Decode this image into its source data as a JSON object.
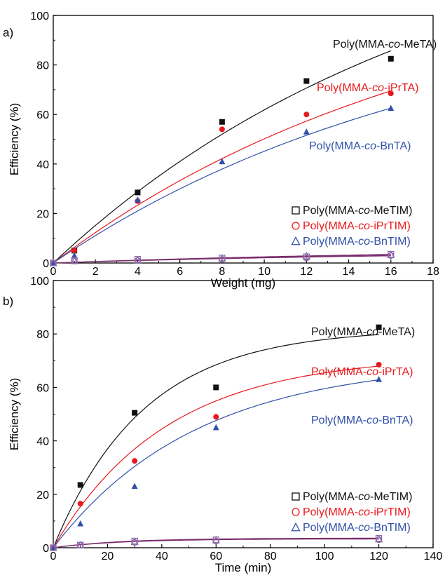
{
  "colors": {
    "black": "#111111",
    "red": "#e8191c",
    "blue": "#3050a8",
    "purple": "#8e6aa8",
    "fit_purple": "#7a2e6e"
  },
  "chart_data": [
    {
      "type": "scatter",
      "panel_label": "a)",
      "xlabel": "Weight (mg)",
      "ylabel": "Efficiency (%)",
      "xlim": [
        0,
        18
      ],
      "ylim": [
        0,
        100
      ],
      "xticks": [
        0,
        2,
        4,
        6,
        8,
        10,
        12,
        14,
        16,
        18
      ],
      "yticks": [
        0,
        20,
        40,
        60,
        80,
        100
      ],
      "fit_k": 0.0541,
      "series": [
        {
          "name": "Poly(MMA-co-MeTA)",
          "color_key": "black",
          "marker": "square-filled",
          "fit_asym": 148,
          "x": [
            0,
            1,
            4,
            8,
            12,
            16
          ],
          "y": [
            0,
            5,
            28.5,
            57,
            73.5,
            82.5
          ]
        },
        {
          "name": "Poly(MMA-co-iPrTA)",
          "color_key": "red",
          "marker": "circle-filled",
          "fit_asym": 120,
          "x": [
            0,
            1,
            4,
            8,
            12,
            16
          ],
          "y": [
            0,
            5,
            25,
            54,
            60,
            68.5
          ]
        },
        {
          "name": "Poly(MMA-co-BnTA)",
          "color_key": "blue",
          "marker": "triangle-filled",
          "fit_asym": 108,
          "x": [
            0,
            1,
            4,
            8,
            12,
            16
          ],
          "y": [
            0,
            3,
            25.5,
            41,
            53,
            62.5
          ]
        },
        {
          "name": "Poly(MMA-co-MeTIM)",
          "color_key": "black",
          "marker": "square-open",
          "fit_asym": 6,
          "x": [
            0,
            1,
            4,
            8,
            12,
            16
          ],
          "y": [
            0,
            1,
            1.5,
            2,
            2.5,
            3.5
          ]
        },
        {
          "name": "Poly(MMA-co-iPrTIM)",
          "color_key": "red",
          "marker": "circle-open",
          "fit_asym": 5,
          "x": [
            0,
            1,
            4,
            8,
            12,
            16
          ],
          "y": [
            0,
            0.8,
            1,
            1.5,
            2,
            3
          ]
        },
        {
          "name": "Poly(MMA-co-BnTIM)",
          "color_key": "blue",
          "marker": "triangle-open",
          "fit_asym": 5.5,
          "x": [
            0,
            1,
            4,
            8,
            12,
            16
          ],
          "y": [
            0,
            0.8,
            1.2,
            1.8,
            2.8,
            3.3
          ]
        }
      ],
      "annotations": [
        {
          "series": "Poly(MMA-co-MeTA)",
          "prefix": "Poly(MMA-",
          "italic": "co",
          "suffix": "-MeTA)",
          "color_key": "black"
        },
        {
          "series": "Poly(MMA-co-iPrTA)",
          "prefix": "Poly(MMA-",
          "italic": "co",
          "suffix": "-iPrTA)",
          "color_key": "red"
        },
        {
          "series": "Poly(MMA-co-BnTA)",
          "prefix": "Poly(MMA-",
          "italic": "co",
          "suffix": "-BnTA)",
          "color_key": "blue"
        }
      ],
      "legend_position": "lower-right",
      "legend": [
        {
          "prefix": "Poly(MMA-",
          "italic": "co",
          "suffix": "-MeTIM)",
          "marker": "square-open",
          "color_key": "black"
        },
        {
          "prefix": "Poly(MMA-",
          "italic": "co",
          "suffix": "-iPrTIM)",
          "marker": "circle-open",
          "color_key": "red"
        },
        {
          "prefix": "Poly(MMA-",
          "italic": "co",
          "suffix": "-BnTIM)",
          "marker": "triangle-open",
          "color_key": "blue"
        }
      ]
    },
    {
      "type": "scatter",
      "panel_label": "b)",
      "xlabel": "Time (min)",
      "ylabel": "Efficiency (%)",
      "xlim": [
        0,
        140
      ],
      "ylim": [
        0,
        100
      ],
      "xticks": [
        0,
        20,
        40,
        60,
        80,
        100,
        120,
        140
      ],
      "yticks": [
        0,
        20,
        40,
        60,
        80,
        100
      ],
      "fit_k": 0.028,
      "series": [
        {
          "name": "Poly(MMA-co-MeTA)",
          "color_key": "black",
          "marker": "square-filled",
          "fit_asym": 82,
          "fit_k": 0.03,
          "x": [
            0,
            10,
            30,
            60,
            120
          ],
          "y": [
            0,
            23.5,
            50.5,
            60,
            82.5
          ]
        },
        {
          "name": "Poly(MMA-co-iPrTA)",
          "color_key": "red",
          "marker": "circle-filled",
          "fit_asym": 72,
          "fit_k": 0.024,
          "x": [
            0,
            10,
            30,
            60,
            120
          ],
          "y": [
            0,
            16.5,
            32.5,
            49,
            68.5
          ]
        },
        {
          "name": "Poly(MMA-co-BnTA)",
          "color_key": "blue",
          "marker": "triangle-filled",
          "fit_asym": 70,
          "fit_k": 0.019,
          "x": [
            0,
            10,
            30,
            60,
            120
          ],
          "y": [
            0,
            9,
            23,
            45,
            63
          ]
        },
        {
          "name": "Poly(MMA-co-MeTIM)",
          "color_key": "black",
          "marker": "square-open",
          "fit_asym": 3.6,
          "fit_k": 0.04,
          "x": [
            0,
            10,
            30,
            60,
            120
          ],
          "y": [
            0,
            1,
            2.5,
            3,
            3.5
          ]
        },
        {
          "name": "Poly(MMA-co-iPrTIM)",
          "color_key": "red",
          "marker": "circle-open",
          "fit_asym": 3.3,
          "fit_k": 0.04,
          "x": [
            0,
            10,
            30,
            60,
            120
          ],
          "y": [
            0,
            1,
            2,
            2.5,
            3
          ]
        },
        {
          "name": "Poly(MMA-co-BnTIM)",
          "color_key": "blue",
          "marker": "triangle-open",
          "fit_asym": 3.4,
          "fit_k": 0.04,
          "x": [
            0,
            10,
            30,
            60,
            120
          ],
          "y": [
            0,
            1,
            2.2,
            2.8,
            3.2
          ]
        }
      ],
      "annotations": [
        {
          "series": "Poly(MMA-co-MeTA)",
          "prefix": "Poly(MMA-",
          "italic": "co",
          "suffix": "-MeTA)",
          "color_key": "black"
        },
        {
          "series": "Poly(MMA-co-iPrTA)",
          "prefix": "Poly(MMA-",
          "italic": "co",
          "suffix": "-iPrTA)",
          "color_key": "red"
        },
        {
          "series": "Poly(MMA-co-BnTA)",
          "prefix": "Poly(MMA-",
          "italic": "co",
          "suffix": "-BnTA)",
          "color_key": "blue"
        }
      ],
      "legend_position": "lower-right",
      "legend": [
        {
          "prefix": "Poly(MMA-",
          "italic": "co",
          "suffix": "-MeTIM)",
          "marker": "square-open",
          "color_key": "black"
        },
        {
          "prefix": "Poly(MMA-",
          "italic": "co",
          "suffix": "-iPrTIM)",
          "marker": "circle-open",
          "color_key": "red"
        },
        {
          "prefix": "Poly(MMA-",
          "italic": "co",
          "suffix": "-BnTIM)",
          "marker": "triangle-open",
          "color_key": "blue"
        }
      ]
    }
  ]
}
